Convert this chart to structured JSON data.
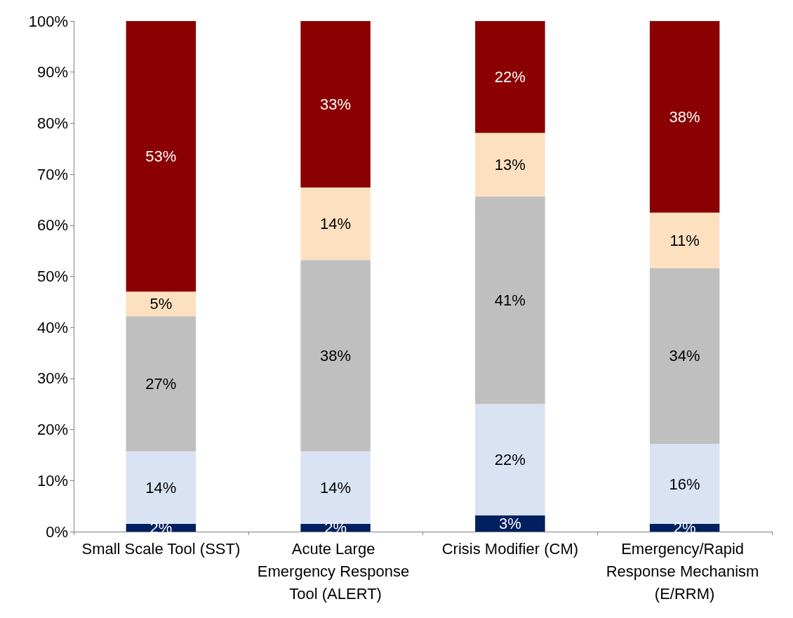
{
  "chart_data": {
    "type": "bar",
    "stacked": true,
    "categories": [
      "Small Scale Tool (SST)",
      "Acute Large Emergency Response Tool (ALERT)",
      "Crisis Modifier (CM)",
      "Emergency/Rapid Response Mechanism (E/RRM)"
    ],
    "series": [
      {
        "color": "#002060",
        "values": [
          1.5,
          1.5,
          3.2,
          1.5
        ],
        "value_labels": [
          "2%",
          "2%",
          "3%",
          "2%"
        ]
      },
      {
        "color": "#dae3f3",
        "values": [
          14.2,
          14.2,
          21.8,
          15.7
        ],
        "value_labels": [
          "14%",
          "14%",
          "22%",
          "16%"
        ]
      },
      {
        "color": "#bfbfbf",
        "values": [
          26.5,
          37.5,
          40.6,
          34.4
        ],
        "value_labels": [
          "27%",
          "38%",
          "41%",
          "34%"
        ]
      },
      {
        "color": "#fde0c0",
        "values": [
          4.8,
          14.2,
          12.5,
          10.9
        ],
        "value_labels": [
          "5%",
          "14%",
          "13%",
          "11%"
        ]
      },
      {
        "color": "#8b0000",
        "values": [
          53.0,
          32.6,
          21.9,
          37.5
        ],
        "value_labels": [
          "53%",
          "33%",
          "22%",
          "38%"
        ]
      }
    ],
    "ylim": [
      0,
      100
    ],
    "yticks": [
      {
        "value": 0,
        "label": "0%"
      },
      {
        "value": 10,
        "label": "10%"
      },
      {
        "value": 20,
        "label": "20%"
      },
      {
        "value": 30,
        "label": "30%"
      },
      {
        "value": 40,
        "label": "40%"
      },
      {
        "value": 50,
        "label": "50%"
      },
      {
        "value": 60,
        "label": "60%"
      },
      {
        "value": 70,
        "label": "70%"
      },
      {
        "value": 80,
        "label": "80%"
      },
      {
        "value": 90,
        "label": "90%"
      },
      {
        "value": 100,
        "label": "100%"
      }
    ],
    "grid": false
  }
}
